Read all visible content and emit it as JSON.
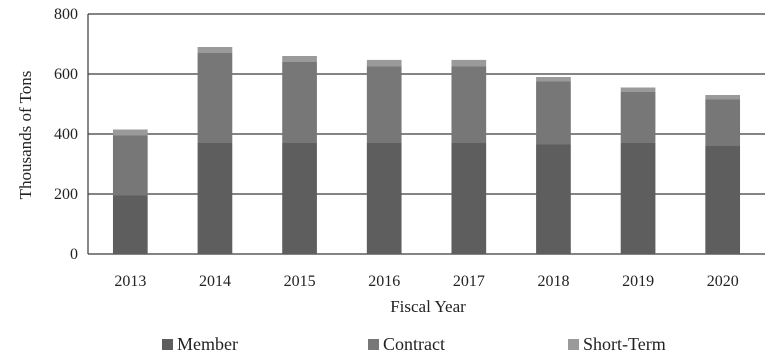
{
  "chart_data": {
    "type": "bar",
    "stacked": true,
    "title": "",
    "xlabel": "Fiscal Year",
    "ylabel": "Thousands of Tons",
    "ylim": [
      0,
      800
    ],
    "yticks": [
      0,
      200,
      400,
      600,
      800
    ],
    "grid": true,
    "legend_position": "bottom",
    "categories": [
      "2013",
      "2014",
      "2015",
      "2016",
      "2017",
      "2018",
      "2019",
      "2020"
    ],
    "series": [
      {
        "name": "Member",
        "color": "#5e5e5e",
        "values": [
          195,
          370,
          370,
          370,
          370,
          365,
          370,
          360
        ]
      },
      {
        "name": "Contract",
        "color": "#777777",
        "values": [
          200,
          300,
          270,
          255,
          255,
          210,
          170,
          155
        ]
      },
      {
        "name": "Short-Term",
        "color": "#9a9a9a",
        "values": [
          20,
          20,
          20,
          22,
          22,
          15,
          15,
          15
        ]
      }
    ]
  }
}
